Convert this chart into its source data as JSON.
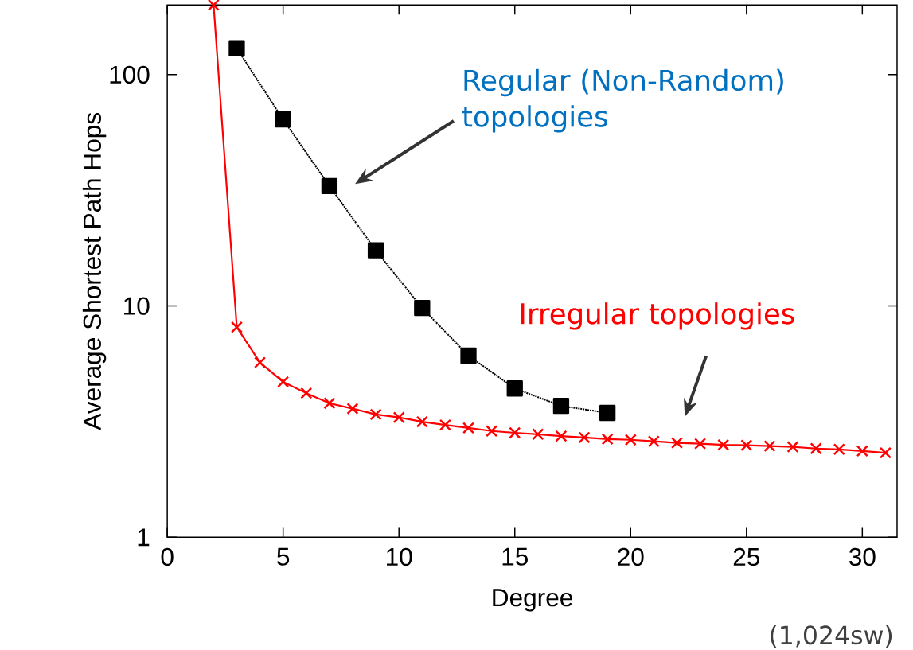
{
  "chart_data": {
    "type": "line",
    "xlabel": "Degree",
    "ylabel": "Average Shortest Path Hops",
    "log": "y",
    "xlim": [
      0,
      31.5
    ],
    "ylim": [
      1,
      200
    ],
    "xticks": [
      0,
      5,
      10,
      15,
      20,
      25,
      30
    ],
    "yticks": [
      1,
      10,
      100
    ],
    "grid": false,
    "series": [
      {
        "color": "#000000",
        "marker": "square",
        "line_style": "dotted",
        "x": [
          3,
          5,
          7,
          9,
          11,
          13,
          15,
          17,
          19
        ],
        "values": [
          130,
          64,
          33,
          17.4,
          9.8,
          6.1,
          4.4,
          3.7,
          3.45
        ]
      },
      {
        "color": "#ff0000",
        "marker": "cross",
        "line_style": "solid",
        "x": [
          2,
          3,
          4,
          5,
          6,
          7,
          8,
          9,
          10,
          11,
          12,
          13,
          14,
          15,
          16,
          17,
          18,
          19,
          20,
          21,
          22,
          23,
          24,
          25,
          26,
          27,
          28,
          29,
          30,
          31
        ],
        "values": [
          200,
          8.1,
          5.7,
          4.7,
          4.2,
          3.8,
          3.6,
          3.4,
          3.3,
          3.16,
          3.06,
          2.97,
          2.88,
          2.83,
          2.79,
          2.74,
          2.7,
          2.66,
          2.64,
          2.6,
          2.56,
          2.54,
          2.51,
          2.5,
          2.48,
          2.46,
          2.42,
          2.4,
          2.36,
          2.32
        ]
      }
    ],
    "annotations": [
      "Regular (Non-Random) topologies",
      "Irregular topologies",
      "(1,024sw)"
    ]
  }
}
